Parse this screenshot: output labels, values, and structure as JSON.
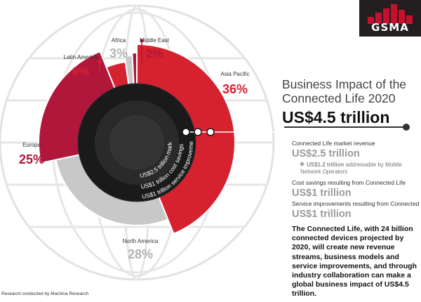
{
  "chart_data": {
    "type": "donut",
    "title": "Business Impact of the Connected Life 2020",
    "slices": [
      {
        "region": "Asia Pacific",
        "percent": 36,
        "color": "#d6212f"
      },
      {
        "region": "North America",
        "percent": 28,
        "color": "#c8c8c8"
      },
      {
        "region": "Europe",
        "percent": 25,
        "color": "#b0173a"
      },
      {
        "region": "Latin America",
        "percent": 6,
        "color": "#d6212f"
      },
      {
        "region": "Africa",
        "percent": 3,
        "color": "#c8c8c8"
      },
      {
        "region": "Middle East",
        "percent": 2,
        "color": "#b0173a"
      }
    ],
    "inner_labels": [
      "US$2.5 trillion market revenue",
      "US$1 trillion cost savings",
      "US$1 trillion service improvements"
    ]
  },
  "logo": {
    "text": "GSMA"
  },
  "title": {
    "line1": "Business Impact of the",
    "line2": "Connected Life 2020",
    "total": "US$4.5 trillion"
  },
  "breakdown": {
    "revenue_label": "Connected Life market revenue",
    "revenue_value": "US$2.5 trillion",
    "addressable_value": "US$1.2 trillion",
    "addressable_text": "addressable by Mobile Network Operators",
    "savings_label": "Cost savings resulting from Connected Life",
    "savings_value": "US$1 trillion",
    "improvements_label": "Service improvements resulting from Connected Life",
    "improvements_value": "US$1 trillion"
  },
  "summary": "The Connected Life, with 24 billion connected devices projected by 2020, will create new revenue streams, business models and service improvements, and through industry collaboration can make a global business impact of US$4.5 trillion.",
  "footer": "Research conducted by Machina Research",
  "colors": {
    "red": "#d6212f",
    "crimson": "#b0173a",
    "grey": "#c8c8c8",
    "dark": "#231f20"
  }
}
